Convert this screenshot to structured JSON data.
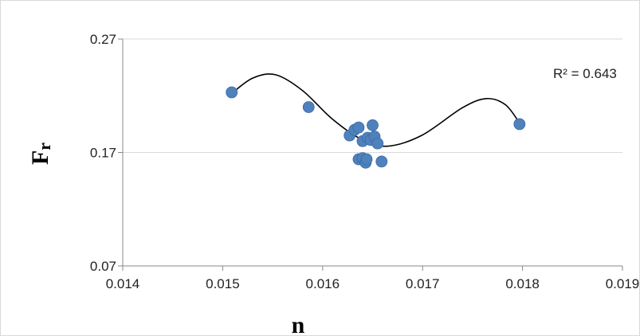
{
  "chart_data": {
    "type": "scatter",
    "xlabel": "n",
    "ylabel": "Fr",
    "ylabel_main": "F",
    "ylabel_sub": "r",
    "xlim": [
      0.014,
      0.019
    ],
    "ylim": [
      0.07,
      0.27
    ],
    "xticks": [
      "0.014",
      "0.015",
      "0.016",
      "0.017",
      "0.018",
      "0.019"
    ],
    "yticks": [
      "0.07",
      "0.17",
      "0.27"
    ],
    "grid": "y-major",
    "legend": "none",
    "point_color": "#4f81bd",
    "trendline_color": "#000000",
    "annotation": "R² = 0.643",
    "points": [
      {
        "x": 0.01509,
        "y": 0.223
      },
      {
        "x": 0.01586,
        "y": 0.21
      },
      {
        "x": 0.01627,
        "y": 0.185
      },
      {
        "x": 0.01632,
        "y": 0.19
      },
      {
        "x": 0.01636,
        "y": 0.192
      },
      {
        "x": 0.01636,
        "y": 0.164
      },
      {
        "x": 0.0164,
        "y": 0.165
      },
      {
        "x": 0.0164,
        "y": 0.18
      },
      {
        "x": 0.01643,
        "y": 0.161
      },
      {
        "x": 0.01644,
        "y": 0.164
      },
      {
        "x": 0.01645,
        "y": 0.183
      },
      {
        "x": 0.01648,
        "y": 0.181
      },
      {
        "x": 0.0165,
        "y": 0.194
      },
      {
        "x": 0.01652,
        "y": 0.184
      },
      {
        "x": 0.01655,
        "y": 0.178
      },
      {
        "x": 0.01659,
        "y": 0.162
      },
      {
        "x": 0.01797,
        "y": 0.195
      }
    ],
    "trendline": [
      {
        "x": 0.01509,
        "y": 0.222
      },
      {
        "x": 0.0153,
        "y": 0.2355
      },
      {
        "x": 0.01553,
        "y": 0.2385
      },
      {
        "x": 0.0158,
        "y": 0.2245
      },
      {
        "x": 0.01609,
        "y": 0.2
      },
      {
        "x": 0.01638,
        "y": 0.182
      },
      {
        "x": 0.01664,
        "y": 0.1755
      },
      {
        "x": 0.01699,
        "y": 0.185
      },
      {
        "x": 0.0174,
        "y": 0.2095
      },
      {
        "x": 0.01764,
        "y": 0.2175
      },
      {
        "x": 0.01783,
        "y": 0.212
      },
      {
        "x": 0.01797,
        "y": 0.196
      }
    ]
  }
}
